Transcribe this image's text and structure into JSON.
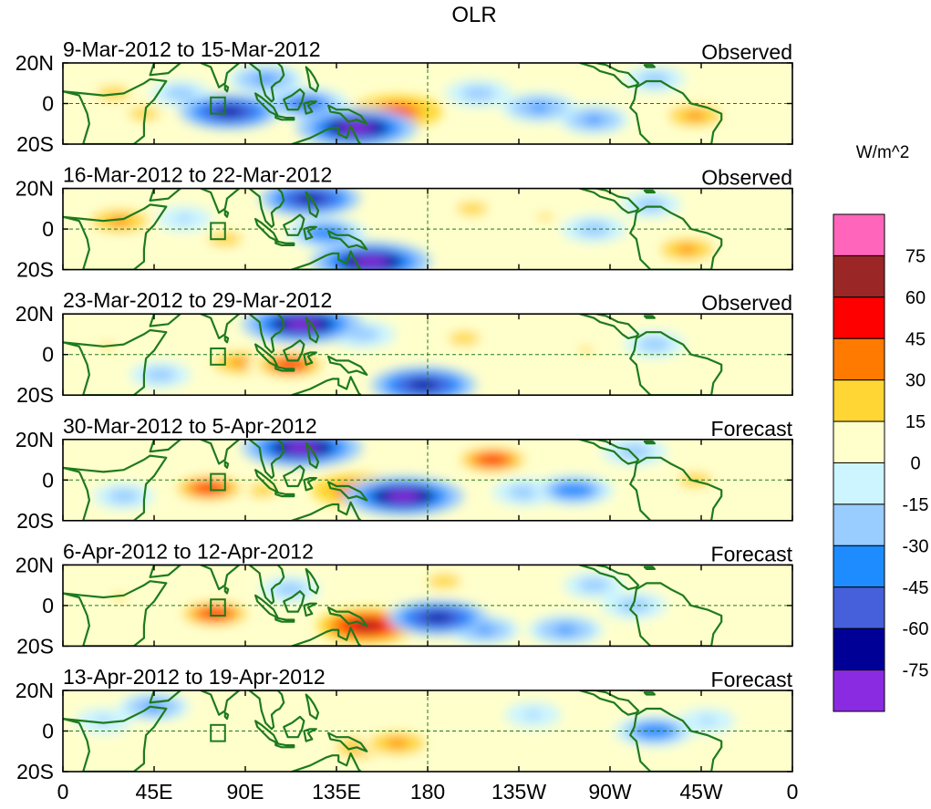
{
  "chart_data": {
    "type": "heatmap",
    "title": "OLR",
    "units": "W/m^2",
    "lat_labels": [
      "20N",
      "0",
      "20S"
    ],
    "x_tick_labels": [
      "0",
      "45E",
      "90E",
      "135E",
      "180",
      "135W",
      "90W",
      "45W",
      "0"
    ],
    "colorbar": {
      "levels": [
        "75",
        "60",
        "45",
        "30",
        "15",
        "0",
        "-15",
        "-30",
        "-45",
        "-60",
        "-75"
      ],
      "colors": [
        "#ff66bb",
        "#9b2626",
        "#ff0000",
        "#ff7a00",
        "#ffd633",
        "#ffffcc",
        "#ccf5ff",
        "#99ccff",
        "#1e8cff",
        "#4660dc",
        "#000096",
        "#8a2be2"
      ]
    },
    "panels": [
      {
        "period": "9-Mar-2012 to 15-Mar-2012",
        "label": "Observed",
        "anomalies": [
          {
            "lon": 25,
            "lat": 5,
            "v": 25
          },
          {
            "lon": 40,
            "lat": -5,
            "v": 20
          },
          {
            "lon": 58,
            "lat": 5,
            "v": -20
          },
          {
            "lon": 82,
            "lat": -4,
            "v": -60
          },
          {
            "lon": 100,
            "lat": 12,
            "v": -35
          },
          {
            "lon": 120,
            "lat": 0,
            "v": -45
          },
          {
            "lon": 145,
            "lat": -12,
            "v": -80
          },
          {
            "lon": 165,
            "lat": -4,
            "v": 50
          },
          {
            "lon": 205,
            "lat": 5,
            "v": -25
          },
          {
            "lon": 235,
            "lat": -2,
            "v": -35
          },
          {
            "lon": 262,
            "lat": -8,
            "v": -30
          },
          {
            "lon": 292,
            "lat": 12,
            "v": -20
          },
          {
            "lon": 312,
            "lat": -6,
            "v": 30
          },
          {
            "lon": 250,
            "lat": 12,
            "v": 12
          }
        ]
      },
      {
        "period": "16-Mar-2012 to 22-Mar-2012",
        "label": "Observed",
        "anomalies": [
          {
            "lon": 28,
            "lat": 4,
            "v": 35
          },
          {
            "lon": 60,
            "lat": 5,
            "v": -15
          },
          {
            "lon": 80,
            "lat": -5,
            "v": 25
          },
          {
            "lon": 122,
            "lat": 15,
            "v": -60
          },
          {
            "lon": 130,
            "lat": -2,
            "v": -40
          },
          {
            "lon": 152,
            "lat": -16,
            "v": -80
          },
          {
            "lon": 165,
            "lat": 8,
            "v": 12
          },
          {
            "lon": 202,
            "lat": 10,
            "v": 20
          },
          {
            "lon": 238,
            "lat": 6,
            "v": 18
          },
          {
            "lon": 262,
            "lat": 0,
            "v": -25
          },
          {
            "lon": 290,
            "lat": 12,
            "v": -20
          },
          {
            "lon": 308,
            "lat": -10,
            "v": 30
          }
        ]
      },
      {
        "period": "23-Mar-2012 to 29-Mar-2012",
        "label": "Observed",
        "anomalies": [
          {
            "lon": 22,
            "lat": 4,
            "v": 15
          },
          {
            "lon": 48,
            "lat": -10,
            "v": -20
          },
          {
            "lon": 88,
            "lat": -4,
            "v": 35
          },
          {
            "lon": 112,
            "lat": -5,
            "v": 45
          },
          {
            "lon": 118,
            "lat": 15,
            "v": -80
          },
          {
            "lon": 148,
            "lat": 10,
            "v": -25
          },
          {
            "lon": 178,
            "lat": -15,
            "v": -65
          },
          {
            "lon": 198,
            "lat": 8,
            "v": 20
          },
          {
            "lon": 258,
            "lat": 2,
            "v": 15
          },
          {
            "lon": 292,
            "lat": 5,
            "v": -20
          },
          {
            "lon": 318,
            "lat": -6,
            "v": 12
          }
        ]
      },
      {
        "period": "30-Mar-2012 to 5-Apr-2012",
        "label": "Forecast",
        "anomalies": [
          {
            "lon": 30,
            "lat": -8,
            "v": -20
          },
          {
            "lon": 72,
            "lat": -4,
            "v": 45
          },
          {
            "lon": 98,
            "lat": -5,
            "v": 25
          },
          {
            "lon": 118,
            "lat": 16,
            "v": -80
          },
          {
            "lon": 145,
            "lat": -5,
            "v": 50
          },
          {
            "lon": 168,
            "lat": -8,
            "v": -80
          },
          {
            "lon": 212,
            "lat": 10,
            "v": 45
          },
          {
            "lon": 228,
            "lat": -6,
            "v": -25
          },
          {
            "lon": 252,
            "lat": -5,
            "v": -40
          },
          {
            "lon": 282,
            "lat": 14,
            "v": -25
          },
          {
            "lon": 312,
            "lat": 0,
            "v": 25
          }
        ]
      },
      {
        "period": "6-Apr-2012 to 12-Apr-2012",
        "label": "Forecast",
        "anomalies": [
          {
            "lon": 28,
            "lat": 4,
            "v": 15
          },
          {
            "lon": 75,
            "lat": -4,
            "v": 45
          },
          {
            "lon": 112,
            "lat": 8,
            "v": -20
          },
          {
            "lon": 150,
            "lat": -10,
            "v": 60
          },
          {
            "lon": 185,
            "lat": -6,
            "v": -60
          },
          {
            "lon": 188,
            "lat": 12,
            "v": 25
          },
          {
            "lon": 208,
            "lat": -12,
            "v": -30
          },
          {
            "lon": 248,
            "lat": -12,
            "v": -35
          },
          {
            "lon": 262,
            "lat": 10,
            "v": -20
          },
          {
            "lon": 282,
            "lat": 0,
            "v": -25
          },
          {
            "lon": 300,
            "lat": -10,
            "v": 12
          }
        ]
      },
      {
        "period": "13-Apr-2012 to 19-Apr-2012",
        "label": "Forecast",
        "anomalies": [
          {
            "lon": 20,
            "lat": 5,
            "v": -15
          },
          {
            "lon": 45,
            "lat": 12,
            "v": -30
          },
          {
            "lon": 85,
            "lat": -6,
            "v": 12
          },
          {
            "lon": 148,
            "lat": -8,
            "v": 30
          },
          {
            "lon": 165,
            "lat": -6,
            "v": 35
          },
          {
            "lon": 200,
            "lat": -5,
            "v": 12
          },
          {
            "lon": 232,
            "lat": 8,
            "v": -15
          },
          {
            "lon": 292,
            "lat": 0,
            "v": -40
          },
          {
            "lon": 318,
            "lat": 5,
            "v": -15
          }
        ]
      }
    ]
  }
}
